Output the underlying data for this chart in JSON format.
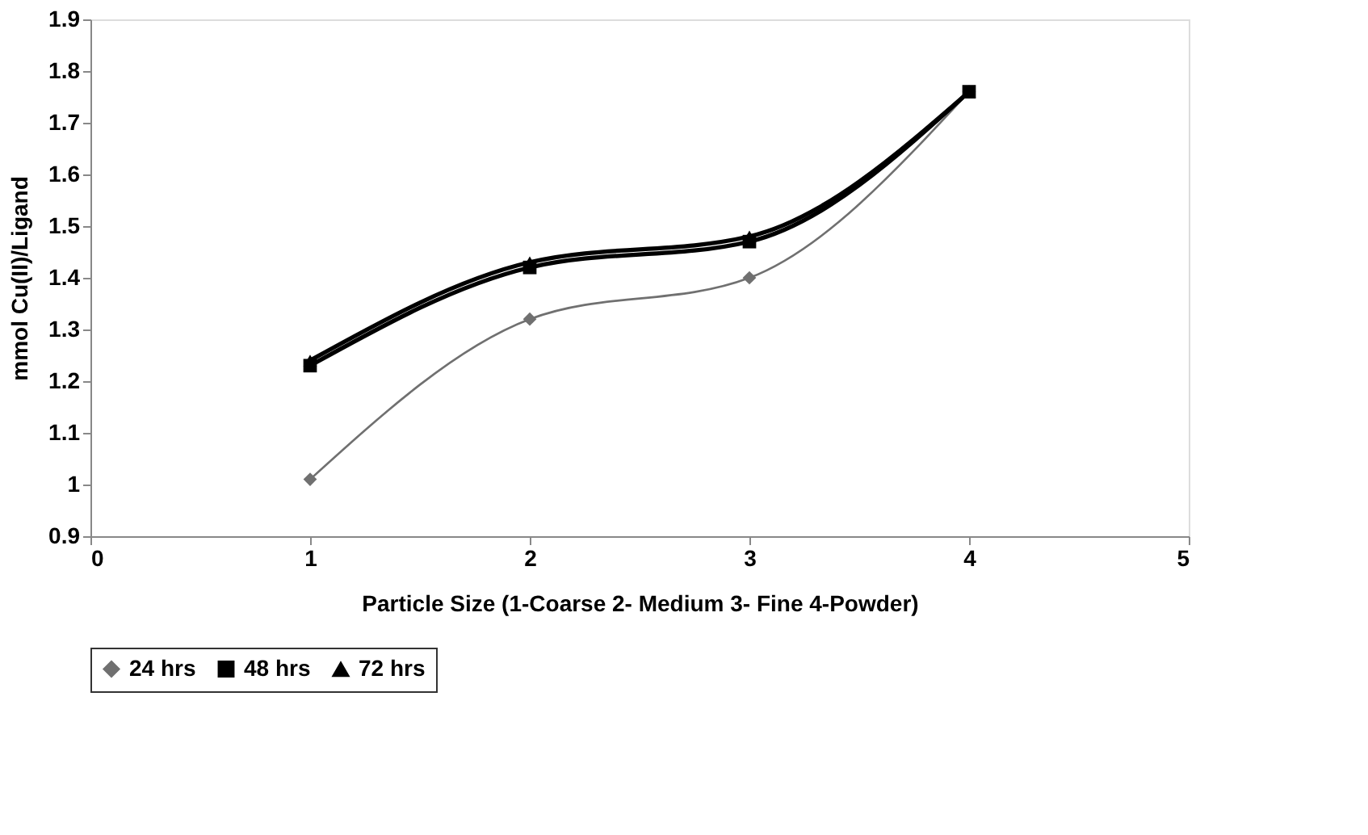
{
  "chart_data": {
    "type": "line",
    "xlabel": "Particle Size (1-Coarse 2- Medium 3- Fine 4-Powder)",
    "ylabel": "mmol Cu(II)/Ligand",
    "x": [
      1,
      2,
      3,
      4
    ],
    "series": [
      {
        "name": "24 hrs",
        "color": "#707070",
        "marker": "diamond",
        "values": [
          1.01,
          1.32,
          1.4,
          1.76
        ]
      },
      {
        "name": "48 hrs",
        "color": "#000000",
        "marker": "square",
        "values": [
          1.23,
          1.42,
          1.47,
          1.76
        ]
      },
      {
        "name": "72 hrs",
        "color": "#000000",
        "marker": "triangle",
        "values": [
          1.24,
          1.43,
          1.48,
          1.76
        ]
      }
    ],
    "xlim": [
      0,
      5
    ],
    "xticks": [
      0,
      1,
      2,
      3,
      4,
      5
    ],
    "ylim": [
      0.9,
      1.9
    ],
    "yticks": [
      0.9,
      1,
      1.1,
      1.2,
      1.3,
      1.4,
      1.5,
      1.6,
      1.7,
      1.8,
      1.9
    ],
    "grid": false,
    "legend": "bottom",
    "line_style": "solid"
  }
}
